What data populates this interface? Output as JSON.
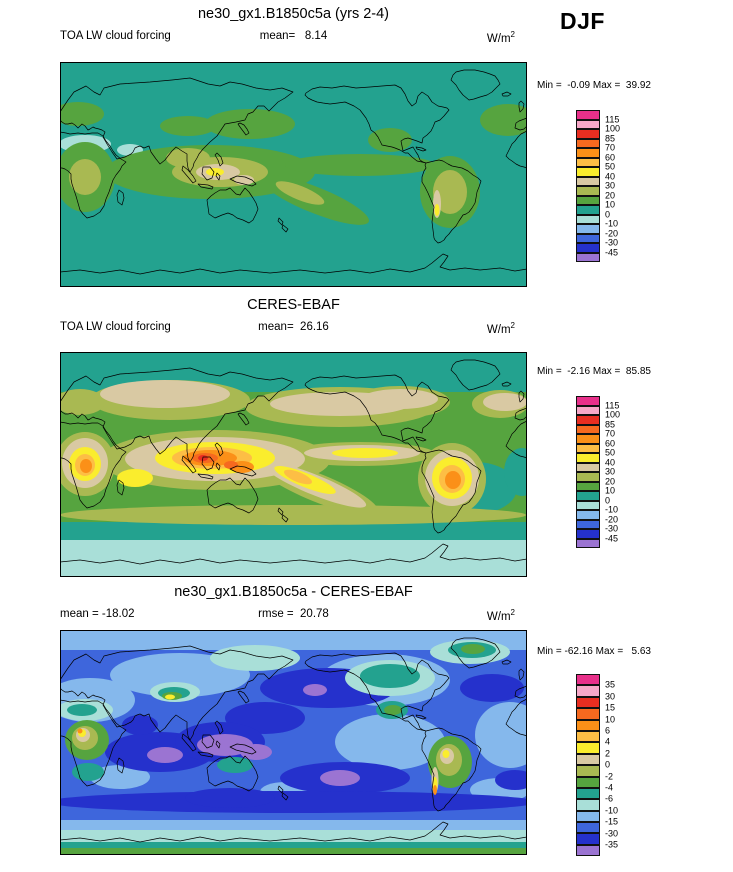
{
  "season_label": "DJF",
  "palette": [
    "#E8308A",
    "#F7A8C8",
    "#E82E21",
    "#F6691F",
    "#FB9018",
    "#FDBE45",
    "#FAED2D",
    "#D9C9A3",
    "#A9B952",
    "#56A43F",
    "#23A28F",
    "#A9DFD8",
    "#85B8EC",
    "#3E66DC",
    "#2531CC",
    "#9B74D2"
  ],
  "panels": [
    {
      "title": "ne30_gx1.B1850c5a (yrs 2-4)",
      "left_label": "TOA LW cloud forcing",
      "center_label": "mean=   8.14",
      "units_base": "W/m",
      "units_exp": "2",
      "minmax_label": "Min =  -0.09 Max =  39.92",
      "colorbar_labels": [
        "115",
        "100",
        "85",
        "70",
        "60",
        "50",
        "40",
        "30",
        "20",
        "10",
        "0",
        "-10",
        "-20",
        "-30",
        "-45"
      ]
    },
    {
      "title": "CERES-EBAF",
      "left_label": "TOA LW cloud forcing",
      "center_label": "mean=  26.16",
      "units_base": "W/m",
      "units_exp": "2",
      "minmax_label": "Min =  -2.16 Max =  85.85",
      "colorbar_labels": [
        "115",
        "100",
        "85",
        "70",
        "60",
        "50",
        "40",
        "30",
        "20",
        "10",
        "0",
        "-10",
        "-20",
        "-30",
        "-45"
      ]
    },
    {
      "title": "ne30_gx1.B1850c5a - CERES-EBAF",
      "left_label": "mean = -18.02",
      "center_label": "rmse =  20.78",
      "units_base": "W/m",
      "units_exp": "2",
      "minmax_label": "Min = -62.16 Max =   5.63",
      "colorbar_labels": [
        "35",
        "30",
        "15",
        "10",
        "6",
        "4",
        "2",
        "0",
        "-2",
        "-4",
        "-6",
        "-10",
        "-15",
        "-30",
        "-35"
      ]
    }
  ],
  "chart_data": [
    {
      "type": "heatmap",
      "subtype": "filled-contour global map",
      "title": "ne30_gx1.B1850c5a (yrs 2-4)",
      "variable": "TOA LW cloud forcing",
      "season": "DJF",
      "units": "W/m^2",
      "stats": {
        "mean": 8.14,
        "min": -0.09,
        "max": 39.92
      },
      "contour_levels": [
        -45,
        -30,
        -20,
        -10,
        0,
        10,
        20,
        30,
        40,
        50,
        60,
        70,
        85,
        100,
        115
      ],
      "projection": "global cylindrical equidistant, longitudes 0-360 centered on 180",
      "legend_position": "right"
    },
    {
      "type": "heatmap",
      "subtype": "filled-contour global map",
      "title": "CERES-EBAF",
      "variable": "TOA LW cloud forcing",
      "season": "DJF",
      "units": "W/m^2",
      "stats": {
        "mean": 26.16,
        "min": -2.16,
        "max": 85.85
      },
      "contour_levels": [
        -45,
        -30,
        -20,
        -10,
        0,
        10,
        20,
        30,
        40,
        50,
        60,
        70,
        85,
        100,
        115
      ],
      "projection": "global cylindrical equidistant, longitudes 0-360 centered on 180",
      "legend_position": "right"
    },
    {
      "type": "heatmap",
      "subtype": "filled-contour difference map",
      "title": "ne30_gx1.B1850c5a - CERES-EBAF",
      "variable": "TOA LW cloud forcing difference",
      "season": "DJF",
      "units": "W/m^2",
      "stats": {
        "mean": -18.02,
        "rmse": 20.78,
        "min": -62.16,
        "max": 5.63
      },
      "contour_levels": [
        -35,
        -30,
        -15,
        -10,
        -6,
        -4,
        -2,
        0,
        2,
        4,
        6,
        10,
        15,
        30,
        35
      ],
      "projection": "global cylindrical equidistant, longitudes 0-360 centered on 180",
      "legend_position": "right"
    }
  ]
}
